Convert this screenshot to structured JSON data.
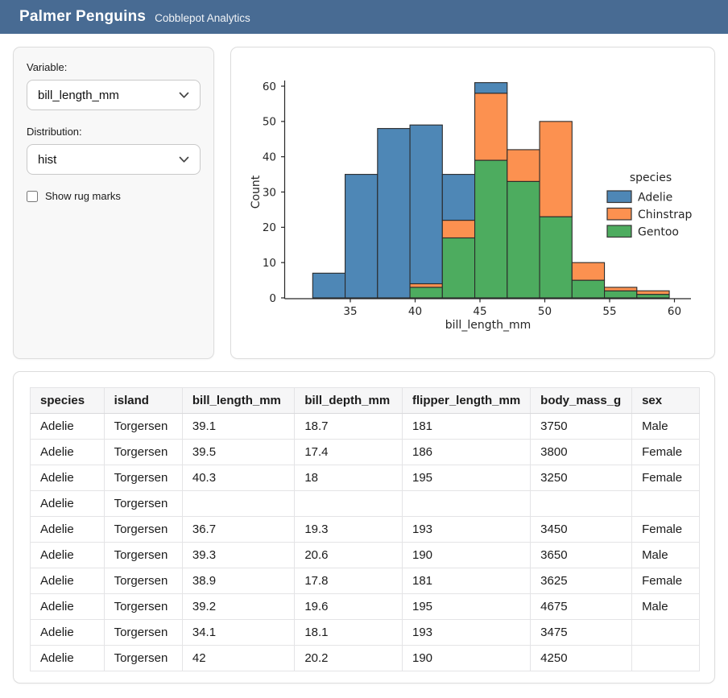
{
  "header": {
    "title": "Palmer Penguins",
    "subtitle": "Cobblepot Analytics"
  },
  "sidebar": {
    "variable_label": "Variable:",
    "variable_value": "bill_length_mm",
    "distribution_label": "Distribution:",
    "distribution_value": "hist",
    "rug_label": "Show rug marks",
    "rug_checked": false
  },
  "chart_data": {
    "type": "bar",
    "subtype": "stacked-histogram",
    "title": "",
    "xlabel": "bill_length_mm",
    "ylabel": "Count",
    "bin_edges": [
      32.1,
      34.6,
      37.1,
      39.6,
      42.1,
      44.6,
      47.1,
      49.6,
      52.1,
      54.6,
      57.1,
      59.6
    ],
    "x_ticks": [
      35,
      40,
      45,
      50,
      55,
      60
    ],
    "y_ticks": [
      0,
      10,
      20,
      30,
      40,
      50,
      60
    ],
    "ylim": [
      0,
      64
    ],
    "grid": false,
    "legend_title": "species",
    "legend_position": "right-inside",
    "legend_order": [
      "Adelie",
      "Chinstrap",
      "Gentoo"
    ],
    "bar_edge_color": "#2a2a2a",
    "series": [
      {
        "name": "Gentoo",
        "color": "#4dac5f",
        "values": [
          0,
          0,
          0,
          3,
          17,
          39,
          33,
          23,
          5,
          2,
          1
        ]
      },
      {
        "name": "Chinstrap",
        "color": "#fc9150",
        "values": [
          0,
          0,
          0,
          1,
          5,
          19,
          9,
          27,
          5,
          1,
          1
        ]
      },
      {
        "name": "Adelie",
        "color": "#4e87b6",
        "values": [
          7,
          35,
          48,
          45,
          13,
          3,
          0,
          0,
          0,
          0,
          0
        ]
      }
    ],
    "stacked_totals": [
      7,
      35,
      48,
      49,
      35,
      61,
      42,
      50,
      10,
      3,
      2
    ]
  },
  "table": {
    "columns": [
      "species",
      "island",
      "bill_length_mm",
      "bill_depth_mm",
      "flipper_length_mm",
      "body_mass_g",
      "sex"
    ],
    "rows": [
      [
        "Adelie",
        "Torgersen",
        "39.1",
        "18.7",
        "181",
        "3750",
        "Male"
      ],
      [
        "Adelie",
        "Torgersen",
        "39.5",
        "17.4",
        "186",
        "3800",
        "Female"
      ],
      [
        "Adelie",
        "Torgersen",
        "40.3",
        "18",
        "195",
        "3250",
        "Female"
      ],
      [
        "Adelie",
        "Torgersen",
        "",
        "",
        "",
        "",
        ""
      ],
      [
        "Adelie",
        "Torgersen",
        "36.7",
        "19.3",
        "193",
        "3450",
        "Female"
      ],
      [
        "Adelie",
        "Torgersen",
        "39.3",
        "20.6",
        "190",
        "3650",
        "Male"
      ],
      [
        "Adelie",
        "Torgersen",
        "38.9",
        "17.8",
        "181",
        "3625",
        "Female"
      ],
      [
        "Adelie",
        "Torgersen",
        "39.2",
        "19.6",
        "195",
        "4675",
        "Male"
      ],
      [
        "Adelie",
        "Torgersen",
        "34.1",
        "18.1",
        "193",
        "3475",
        ""
      ],
      [
        "Adelie",
        "Torgersen",
        "42",
        "20.2",
        "190",
        "4250",
        ""
      ]
    ]
  },
  "colors": {
    "header_bg": "#486b93",
    "card_border": "#dcdcdc",
    "sidebar_bg": "#f8f8f8",
    "adelie": "#4e87b6",
    "chinstrap": "#fc9150",
    "gentoo": "#4dac5f"
  }
}
